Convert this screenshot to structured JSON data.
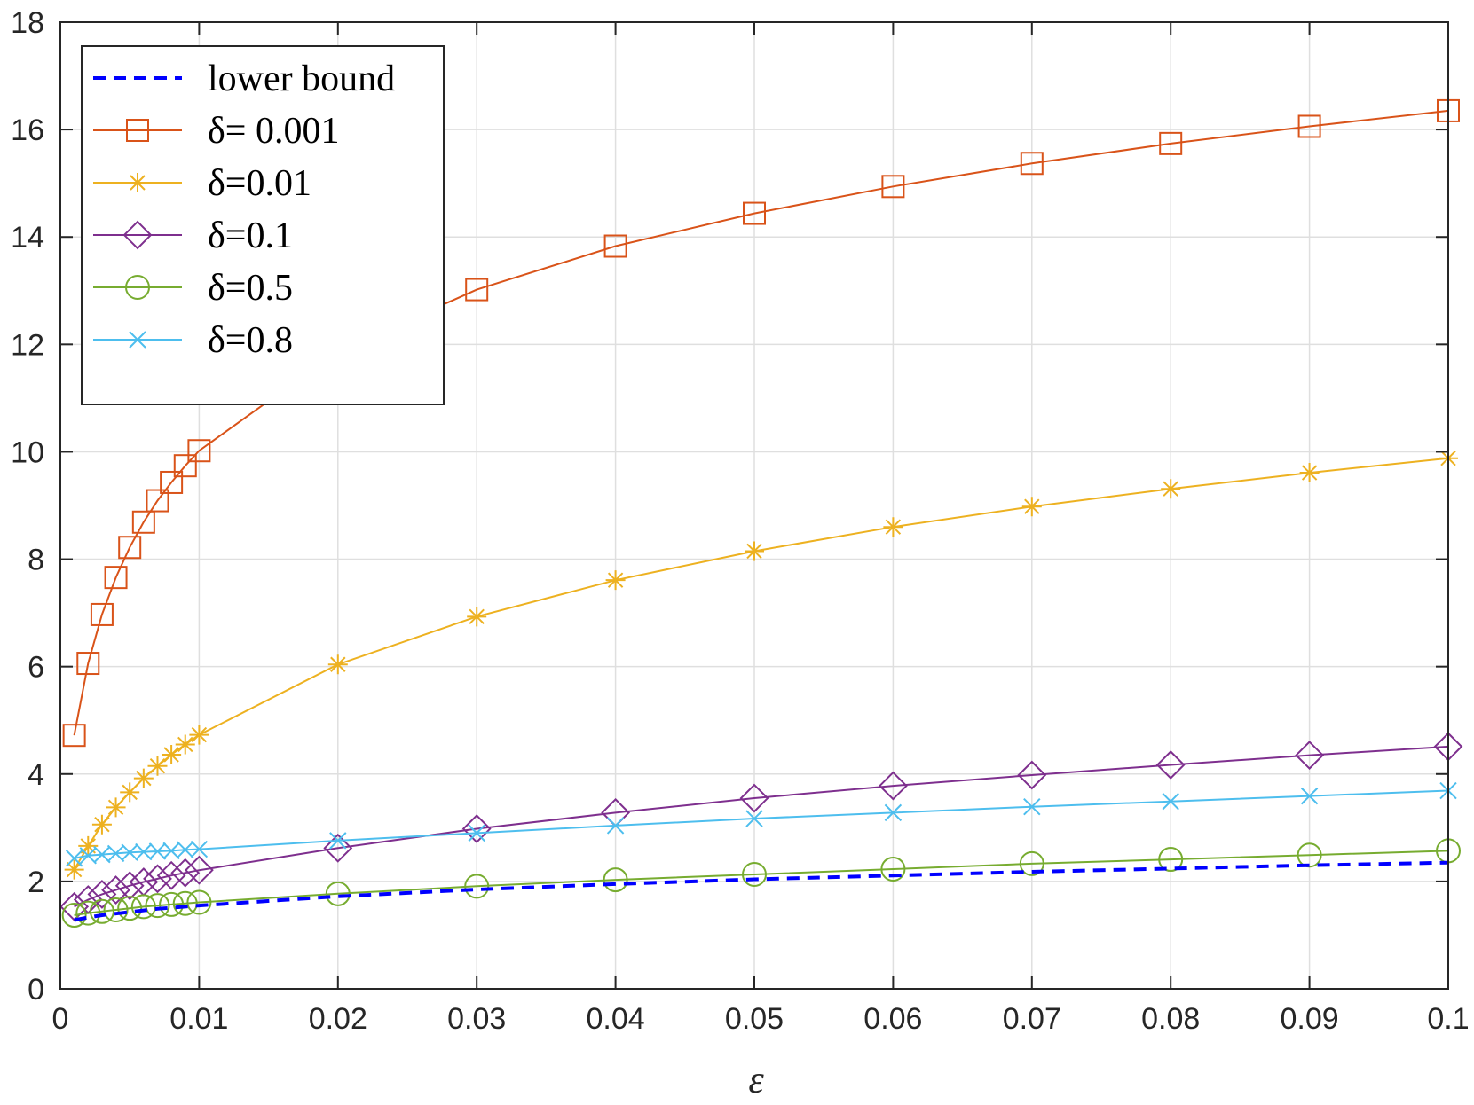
{
  "chart_data": {
    "type": "line",
    "title": "",
    "xlabel": "ε",
    "ylabel": "",
    "xlim": [
      0,
      0.1
    ],
    "ylim": [
      0,
      18
    ],
    "x_ticks": [
      0,
      0.01,
      0.02,
      0.03,
      0.04,
      0.05,
      0.06,
      0.07,
      0.08,
      0.09,
      0.1
    ],
    "x_tick_labels": [
      "0",
      "0.01",
      "0.02",
      "0.03",
      "0.04",
      "0.05",
      "0.06",
      "0.07",
      "0.08",
      "0.09",
      "0.1"
    ],
    "y_ticks": [
      0,
      2,
      4,
      6,
      8,
      10,
      12,
      14,
      16,
      18
    ],
    "y_tick_labels": [
      "0",
      "2",
      "4",
      "6",
      "8",
      "10",
      "12",
      "14",
      "16",
      "18"
    ],
    "grid": true,
    "legend_position": "top-left",
    "x": [
      0.001,
      0.002,
      0.003,
      0.004,
      0.005,
      0.006,
      0.007,
      0.008,
      0.009,
      0.01,
      0.02,
      0.03,
      0.04,
      0.05,
      0.06,
      0.07,
      0.08,
      0.09,
      0.1
    ],
    "series": [
      {
        "name": "lower bound",
        "color": "#0000ff",
        "marker": "none",
        "dashed": true,
        "values": [
          1.28,
          1.33,
          1.37,
          1.4,
          1.43,
          1.46,
          1.49,
          1.51,
          1.53,
          1.55,
          1.72,
          1.85,
          1.95,
          2.04,
          2.11,
          2.18,
          2.24,
          2.3,
          2.35
        ]
      },
      {
        "name": "δ= 0.001",
        "color": "#d95319",
        "marker": "square",
        "dashed": false,
        "values": [
          4.72,
          6.06,
          6.97,
          7.66,
          8.22,
          8.69,
          9.09,
          9.43,
          9.74,
          10.02,
          11.87,
          13.02,
          13.83,
          14.44,
          14.94,
          15.37,
          15.74,
          16.06,
          16.35
        ]
      },
      {
        "name": "δ=0.01",
        "color": "#edb120",
        "marker": "asterisk",
        "dashed": false,
        "values": [
          2.22,
          2.66,
          3.06,
          3.38,
          3.66,
          3.92,
          4.15,
          4.36,
          4.55,
          4.73,
          6.04,
          6.93,
          7.61,
          8.15,
          8.6,
          8.98,
          9.31,
          9.61,
          9.88
        ]
      },
      {
        "name": "δ=0.1",
        "color": "#7e2f8e",
        "marker": "diamond",
        "dashed": false,
        "values": [
          1.53,
          1.66,
          1.76,
          1.84,
          1.92,
          1.99,
          2.05,
          2.11,
          2.16,
          2.21,
          2.62,
          2.98,
          3.28,
          3.55,
          3.78,
          3.98,
          4.17,
          4.35,
          4.51
        ]
      },
      {
        "name": "δ=0.5",
        "color": "#77ac30",
        "marker": "circle",
        "dashed": false,
        "values": [
          1.37,
          1.41,
          1.44,
          1.47,
          1.5,
          1.53,
          1.55,
          1.57,
          1.59,
          1.61,
          1.77,
          1.91,
          2.03,
          2.13,
          2.23,
          2.33,
          2.41,
          2.49,
          2.57
        ]
      },
      {
        "name": "δ=0.8",
        "color": "#4dbeee",
        "marker": "x",
        "dashed": false,
        "values": [
          2.43,
          2.48,
          2.5,
          2.52,
          2.54,
          2.55,
          2.56,
          2.57,
          2.59,
          2.6,
          2.76,
          2.9,
          3.04,
          3.17,
          3.28,
          3.39,
          3.49,
          3.59,
          3.69
        ]
      }
    ]
  }
}
